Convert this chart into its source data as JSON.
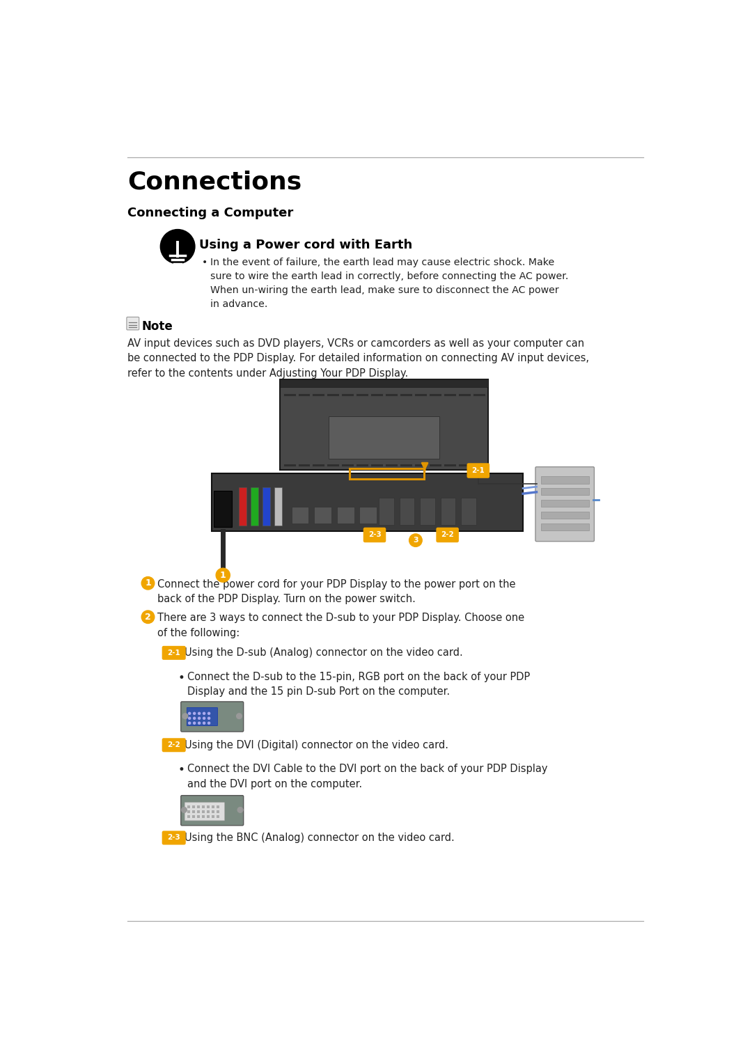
{
  "bg_color": "#ffffff",
  "title": "Connections",
  "subtitle": "Connecting a Computer",
  "section_title": "Using a Power cord with Earth",
  "warning_text": "In the event of failure, the earth lead may cause electric shock. Make\nsure to wire the earth lead in correctly, before connecting the AC power.\nWhen un-wiring the earth lead, make sure to disconnect the AC power\nin advance.",
  "note_text": "AV input devices such as DVD players, VCRs or camcorders as well as your computer can\nbe connected to the PDP Display. For detailed information on connecting AV input devices,\nrefer to the contents under Adjusting Your PDP Display.",
  "item1_text": "Connect the power cord for your PDP Display to the power port on the\nback of the PDP Display. Turn on the power switch.",
  "item2_text": "There are 3 ways to connect the D-sub to your PDP Display. Choose one\nof the following:",
  "sub21_text": "Using the D-sub (Analog) connector on the video card.",
  "sub21_bullet": "Connect the D-sub to the 15-pin, RGB port on the back of your PDP\nDisplay and the 15 pin D-sub Port on the computer.",
  "sub22_text": "Using the DVI (Digital) connector on the video card.",
  "sub22_bullet": "Connect the DVI Cable to the DVI port on the back of your PDP Display\nand the DVI port on the computer.",
  "sub23_text": "Using the BNC (Analog) connector on the video card.",
  "orange_color": "#F0A500",
  "text_color": "#222222",
  "title_color": "#000000",
  "rule_color": "#aaaaaa"
}
